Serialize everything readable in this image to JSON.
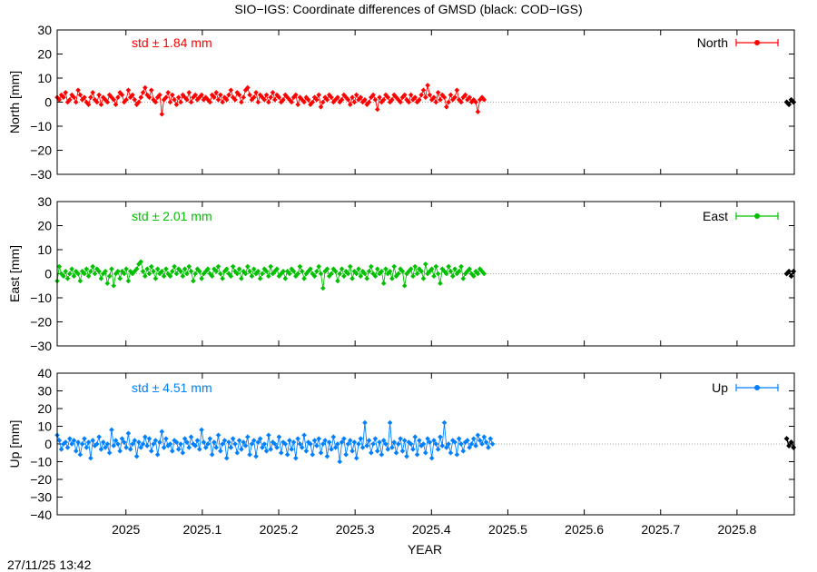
{
  "page": {
    "title": "SIO−IGS: Coordinate differences of GMSD (black: COD−IGS)",
    "xlabel": "YEAR",
    "footer_timestamp": "27/11/25 13:42"
  },
  "chart_data": [
    {
      "type": "line",
      "component": "North",
      "ylabel": "North [mm]",
      "std_text": "std ± 1.84 mm",
      "legend": "North",
      "color": "#ff0000",
      "xlim": [
        2024.91,
        2025.875
      ],
      "ylim": [
        -30,
        30
      ],
      "yticks": [
        30,
        20,
        10,
        0,
        -10,
        -20,
        -30
      ],
      "ytick_labels": [
        "30",
        "20",
        "10",
        "0",
        "−10",
        "−20",
        "−30"
      ],
      "series": [
        {
          "name": "North",
          "color": "#ff0000",
          "x_start": 2024.91,
          "x_step": 0.00274,
          "y": [
            2,
            1,
            3,
            2,
            4,
            0,
            1,
            3,
            2,
            0,
            5,
            3,
            1,
            2,
            0,
            -1,
            2,
            4,
            1,
            0,
            3,
            -1,
            2,
            1,
            0,
            3,
            2,
            1,
            -1,
            2,
            4,
            3,
            0,
            1,
            5,
            2,
            3,
            1,
            -1,
            0,
            2,
            4,
            6,
            3,
            2,
            5,
            1,
            0,
            2,
            3,
            -5,
            1,
            2,
            4,
            0,
            3,
            1,
            -1,
            2,
            0,
            3,
            2,
            1,
            4,
            0,
            2,
            3,
            1,
            2,
            3,
            1,
            2,
            1,
            0,
            3,
            2,
            4,
            1,
            3,
            0,
            2,
            1,
            3,
            5,
            2,
            1,
            4,
            3,
            0,
            2,
            5,
            6,
            3,
            1,
            2,
            4,
            0,
            3,
            2,
            1,
            3,
            0,
            2,
            4,
            1,
            3,
            2,
            0,
            1,
            3,
            2,
            1,
            0,
            2,
            3,
            -1,
            2,
            1,
            0,
            2,
            1,
            -1,
            0,
            2,
            1,
            3,
            -2,
            0,
            2,
            1,
            3,
            2,
            0,
            1,
            2,
            0,
            1,
            3,
            2,
            1,
            -1,
            2,
            0,
            3,
            1,
            2,
            0,
            1,
            -1,
            0,
            2,
            3,
            1,
            -3,
            2,
            0,
            1,
            3,
            2,
            0,
            1,
            3,
            2,
            1,
            0,
            2,
            3,
            1,
            0,
            3,
            1,
            2,
            0,
            1,
            3,
            5,
            2,
            7,
            3,
            1,
            2,
            0,
            4,
            1,
            3,
            2,
            -2,
            0,
            3,
            1,
            2,
            5,
            1,
            0,
            2,
            3,
            1,
            2,
            0,
            1,
            0,
            -4,
            1,
            2,
            1
          ]
        },
        {
          "name": "COD−IGS",
          "color": "#000000",
          "x": [
            2025.865,
            2025.868,
            2025.871,
            2025.874
          ],
          "y": [
            0,
            -1,
            1,
            0
          ]
        }
      ]
    },
    {
      "type": "line",
      "component": "East",
      "ylabel": "East [mm]",
      "std_text": "std ± 2.01 mm",
      "legend": "East",
      "color": "#00c000",
      "xlim": [
        2024.91,
        2025.875
      ],
      "ylim": [
        -30,
        30
      ],
      "yticks": [
        30,
        20,
        10,
        0,
        -10,
        -20,
        -30
      ],
      "ytick_labels": [
        "30",
        "20",
        "10",
        "0",
        "−10",
        "−20",
        "−30"
      ],
      "series": [
        {
          "name": "East",
          "color": "#00c000",
          "x_start": 2024.91,
          "x_step": 0.00274,
          "y": [
            -3,
            3,
            0,
            -1,
            1,
            -2,
            0,
            2,
            -1,
            1,
            0,
            -3,
            1,
            0,
            2,
            -1,
            1,
            3,
            0,
            2,
            1,
            -2,
            0,
            1,
            -4,
            -1,
            2,
            -5,
            0,
            1,
            -2,
            1,
            0,
            2,
            -3,
            1,
            0,
            1,
            2,
            4,
            5,
            1,
            -1,
            2,
            0,
            3,
            1,
            -2,
            2,
            0,
            1,
            -1,
            2,
            0,
            -1,
            1,
            3,
            0,
            2,
            1,
            -1,
            2,
            0,
            3,
            1,
            -3,
            0,
            2,
            1,
            -2,
            0,
            1,
            2,
            0,
            -1,
            2,
            1,
            3,
            0,
            -2,
            1,
            2,
            0,
            -1,
            3,
            1,
            0,
            2,
            -2,
            1,
            0,
            3,
            1,
            -1,
            2,
            0,
            1,
            -2,
            0,
            2,
            1,
            -1,
            3,
            0,
            1,
            2,
            -1,
            0,
            1,
            -2,
            1,
            0,
            2,
            1,
            -1,
            0,
            3,
            1,
            -2,
            0,
            1,
            2,
            0,
            -1,
            1,
            3,
            0,
            -6,
            1,
            2,
            -1,
            0,
            2,
            1,
            -3,
            0,
            2,
            -1,
            1,
            0,
            3,
            -2,
            1,
            0,
            2,
            -1,
            1,
            0,
            -2,
            1,
            3,
            0,
            -1,
            2,
            0,
            1,
            -4,
            2,
            0,
            1,
            -2,
            3,
            -1,
            0,
            2,
            1,
            -5,
            0,
            1,
            2,
            -1,
            3,
            0,
            2,
            1,
            -2,
            4,
            0,
            1,
            2,
            -1,
            3,
            0,
            -4,
            2,
            1,
            0,
            3,
            1,
            -1,
            2,
            0,
            1,
            3,
            -2,
            0,
            1,
            2,
            0,
            -1,
            1,
            0,
            2,
            1,
            0
          ]
        },
        {
          "name": "COD−IGS",
          "color": "#000000",
          "x": [
            2025.865,
            2025.868,
            2025.871,
            2025.874
          ],
          "y": [
            0,
            1,
            -1,
            1
          ]
        }
      ]
    },
    {
      "type": "line",
      "component": "Up",
      "ylabel": "Up [mm]",
      "std_text": "std ± 4.51 mm",
      "legend": "Up",
      "color": "#0080ff",
      "xlim": [
        2024.91,
        2025.875
      ],
      "ylim": [
        -40,
        40
      ],
      "yticks": [
        40,
        30,
        20,
        10,
        0,
        -10,
        -20,
        -30,
        -40
      ],
      "ytick_labels": [
        "40",
        "30",
        "20",
        "10",
        "0",
        "−10",
        "−20",
        "−30",
        "−40"
      ],
      "series": [
        {
          "name": "Up",
          "color": "#0080ff",
          "x_start": 2024.91,
          "x_step": 0.00274,
          "y": [
            5,
            2,
            -3,
            0,
            1,
            -2,
            3,
            0,
            2,
            -4,
            1,
            -6,
            0,
            3,
            -2,
            1,
            -8,
            2,
            -1,
            0,
            4,
            -3,
            1,
            -2,
            0,
            -5,
            8,
            -1,
            2,
            0,
            -4,
            3,
            1,
            -2,
            6,
            -3,
            0,
            2,
            -7,
            1,
            -2,
            0,
            4,
            -1,
            3,
            -4,
            0,
            2,
            -6,
            1,
            7,
            -2,
            3,
            -1,
            0,
            -4,
            2,
            1,
            -3,
            0,
            -5,
            3,
            1,
            -2,
            4,
            0,
            -1,
            2,
            -3,
            8,
            1,
            -2,
            0,
            3,
            -6,
            1,
            -2,
            5,
            -4,
            0,
            2,
            -8,
            1,
            -2,
            3,
            0,
            -5,
            2,
            -3,
            1,
            -1,
            4,
            -6,
            0,
            2,
            -7,
            1,
            3,
            -2,
            0,
            -4,
            5,
            -3,
            1,
            0,
            -2,
            4,
            -5,
            1,
            0,
            -6,
            2,
            -3,
            1,
            -8,
            3,
            0,
            -2,
            5,
            -4,
            1,
            0,
            -6,
            2,
            -1,
            3,
            -5,
            0,
            2,
            -7,
            1,
            -3,
            4,
            -2,
            0,
            -10,
            1,
            3,
            -6,
            0,
            2,
            -4,
            1,
            -8,
            0,
            3,
            -2,
            12,
            -1,
            2,
            -5,
            0,
            3,
            -4,
            1,
            -6,
            2,
            0,
            -3,
            12,
            -2,
            1,
            -5,
            0,
            3,
            -4,
            2,
            -7,
            1,
            0,
            -3,
            4,
            -6,
            2,
            -1,
            0,
            -5,
            3,
            1,
            -8,
            2,
            0,
            -3,
            4,
            -1,
            12,
            -2,
            0,
            -5,
            2,
            1,
            -6,
            3,
            0,
            -4,
            1,
            2,
            -2,
            0,
            3,
            -1,
            5,
            2,
            0,
            4,
            1,
            -2,
            3,
            0
          ]
        },
        {
          "name": "COD−IGS",
          "color": "#000000",
          "x": [
            2025.865,
            2025.868,
            2025.871,
            2025.874
          ],
          "y": [
            3,
            -1,
            1,
            -2
          ]
        }
      ]
    }
  ],
  "x_axis": {
    "ticks": [
      2025,
      2025.1,
      2025.2,
      2025.3,
      2025.4,
      2025.5,
      2025.6,
      2025.7,
      2025.8
    ],
    "tick_labels": [
      "2025",
      "2025.1",
      "2025.2",
      "2025.3",
      "2025.4",
      "2025.5",
      "2025.6",
      "2025.7",
      "2025.8"
    ]
  }
}
